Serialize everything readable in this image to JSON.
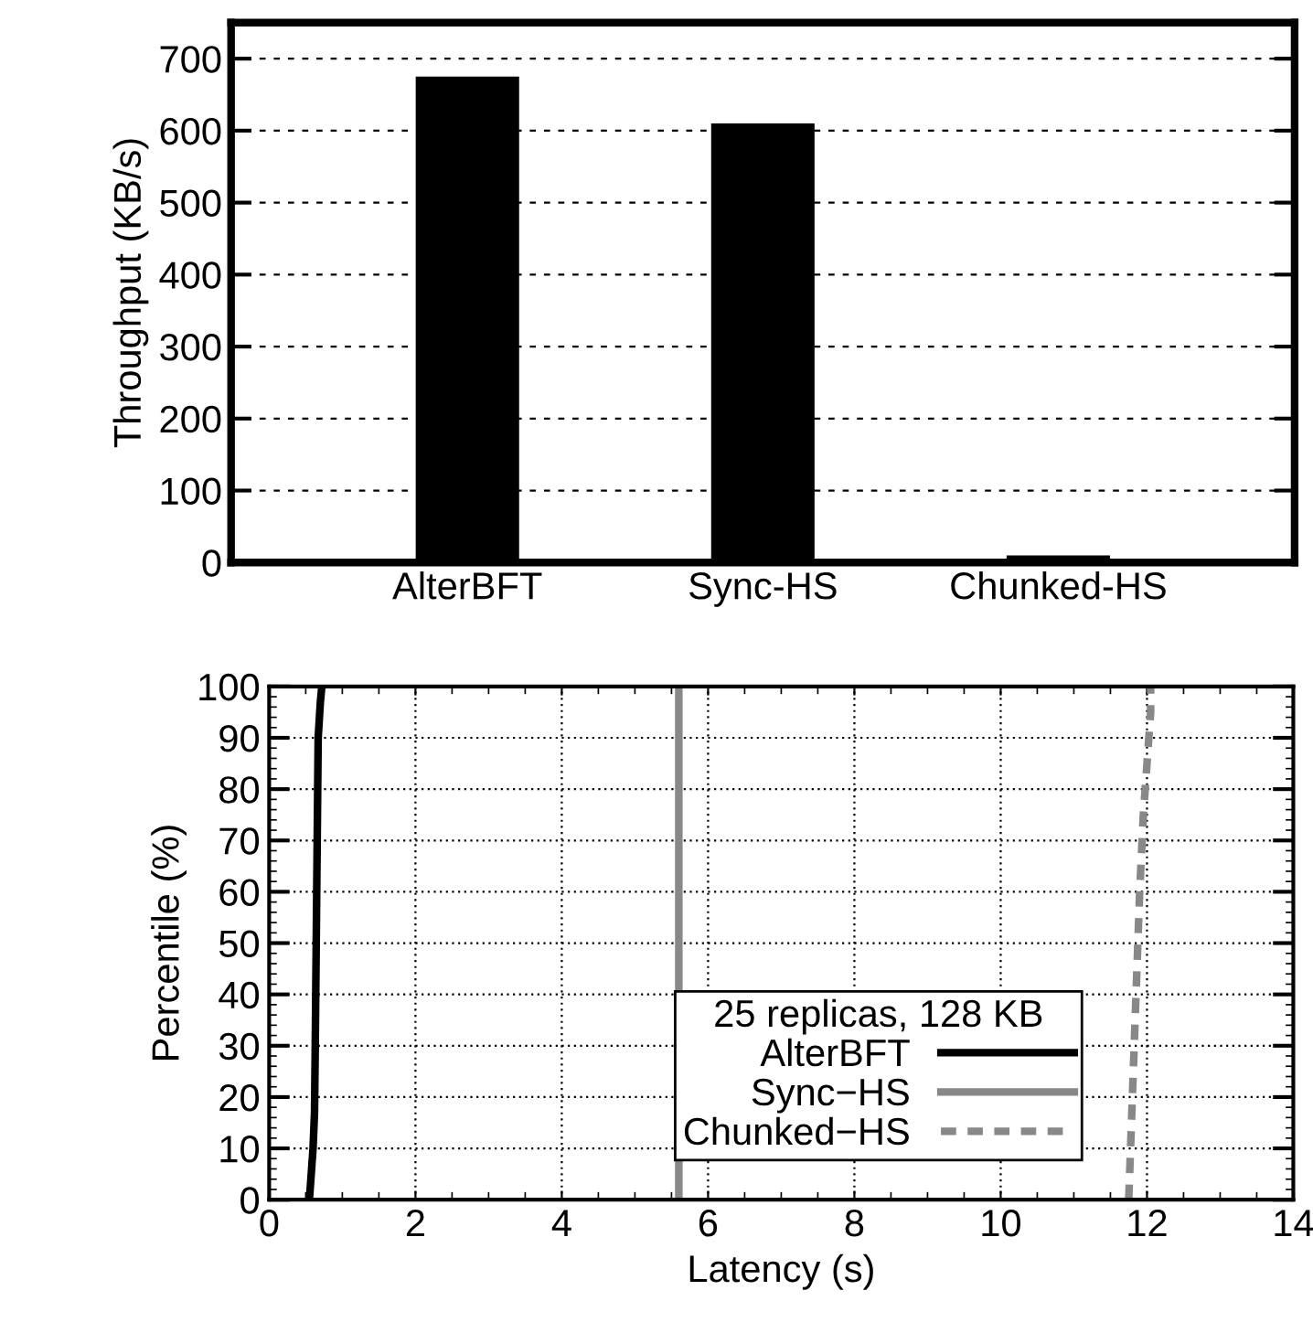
{
  "chart_data": [
    {
      "type": "bar",
      "ylabel": "Throughput (KB/s)",
      "categories": [
        "AlterBFT",
        "Sync-HS",
        "Chunked-HS"
      ],
      "values": [
        675,
        610,
        10
      ],
      "color": "#000000",
      "ylim": [
        0,
        750
      ],
      "yticks": [
        0,
        100,
        200,
        300,
        400,
        500,
        600,
        700
      ],
      "grid": "y"
    },
    {
      "type": "line",
      "xlabel": "Latency (s)",
      "ylabel": "Percentile (%)",
      "legend_title": "25 replicas, 128 KB",
      "legend": "bottom",
      "grid": true,
      "xlim": [
        0,
        14
      ],
      "xticks": [
        0,
        2,
        4,
        6,
        8,
        10,
        12,
        14
      ],
      "ylim": [
        0,
        100
      ],
      "yticks": [
        0,
        10,
        20,
        30,
        40,
        50,
        60,
        70,
        80,
        90,
        100
      ],
      "series": [
        {
          "name": "AlterBFT",
          "color": "#000000",
          "line_style": "solid",
          "x": [
            0.55,
            0.6,
            0.62,
            0.63,
            0.65,
            0.67,
            0.7,
            0.72
          ],
          "values": [
            0,
            10,
            17,
            30,
            60,
            90,
            97,
            100
          ]
        },
        {
          "name": "Sync−HS",
          "color": "#888888",
          "line_style": "solid",
          "x": [
            5.6,
            5.6
          ],
          "values": [
            0,
            100
          ]
        },
        {
          "name": "Chunked−HS",
          "color": "#888888",
          "line_style": "dashed",
          "x": [
            11.75,
            11.8,
            11.85,
            11.9,
            11.95,
            12.0,
            12.05,
            12.05
          ],
          "values": [
            0,
            20,
            40,
            60,
            75,
            85,
            95,
            100
          ]
        }
      ]
    }
  ]
}
